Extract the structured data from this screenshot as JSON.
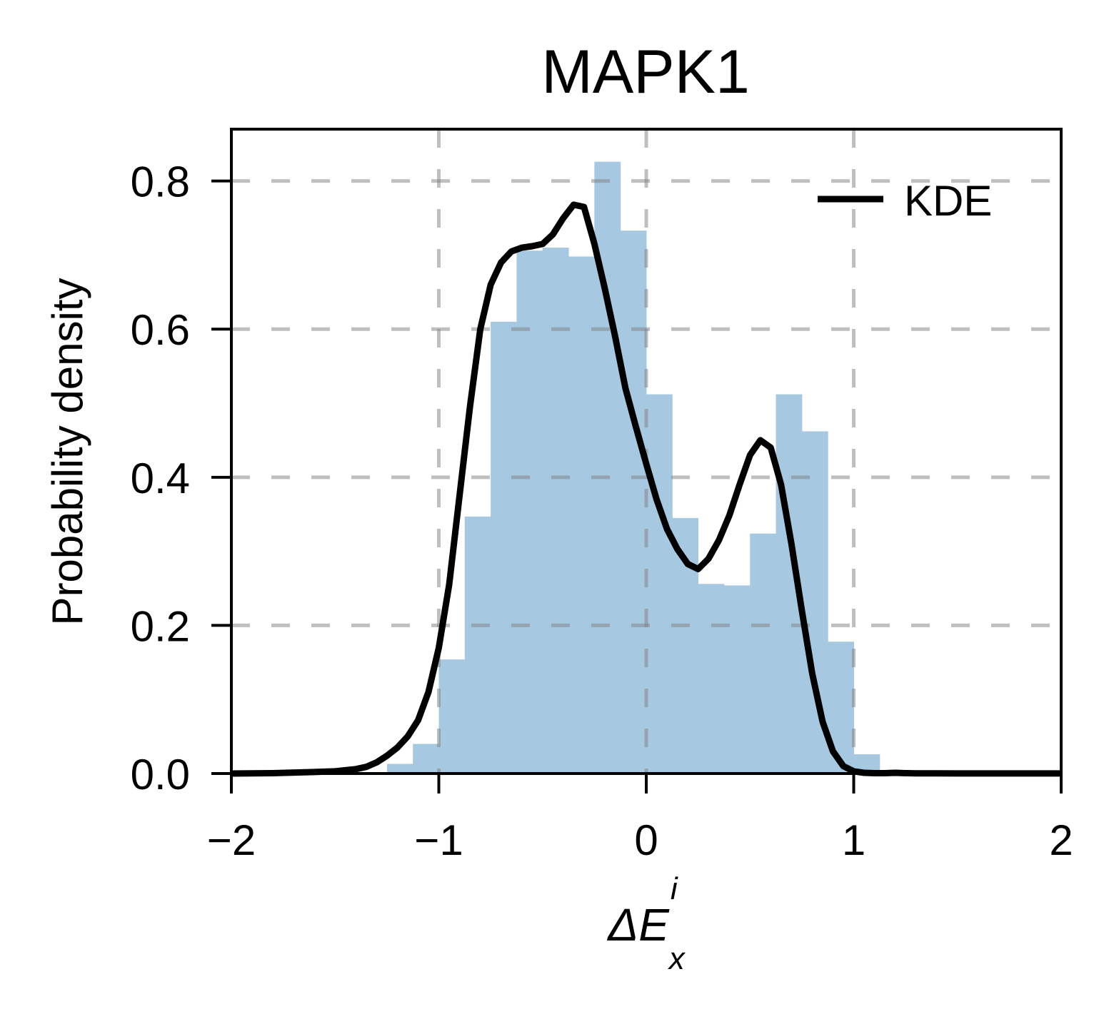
{
  "chart_data": {
    "type": "bar",
    "title": "MAPK1",
    "xlabel": {
      "base": "ΔE",
      "sup": "i",
      "sub": "x"
    },
    "ylabel": "Probability density",
    "xlim": [
      -2,
      2
    ],
    "ylim": [
      0,
      0.87
    ],
    "xticks": [
      -2,
      -1,
      0,
      1,
      2
    ],
    "xtick_labels": [
      "−2",
      "−1",
      "0",
      "1",
      "2"
    ],
    "yticks": [
      0.0,
      0.2,
      0.4,
      0.6,
      0.8
    ],
    "ytick_labels": [
      "0.0",
      "0.2",
      "0.4",
      "0.6",
      "0.8"
    ],
    "grid": true,
    "legend_position": "top-right",
    "histogram": {
      "color": "#a6c8e0",
      "bins": [
        {
          "x0": -1.25,
          "x1": -1.125,
          "value": 0.013
        },
        {
          "x0": -1.125,
          "x1": -1.0,
          "value": 0.04
        },
        {
          "x0": -1.0,
          "x1": -0.875,
          "value": 0.154
        },
        {
          "x0": -0.875,
          "x1": -0.75,
          "value": 0.347
        },
        {
          "x0": -0.75,
          "x1": -0.625,
          "value": 0.61
        },
        {
          "x0": -0.625,
          "x1": -0.5,
          "value": 0.706
        },
        {
          "x0": -0.5,
          "x1": -0.375,
          "value": 0.71
        },
        {
          "x0": -0.375,
          "x1": -0.25,
          "value": 0.698
        },
        {
          "x0": -0.25,
          "x1": -0.125,
          "value": 0.826
        },
        {
          "x0": -0.125,
          "x1": 0.0,
          "value": 0.733
        },
        {
          "x0": 0.0,
          "x1": 0.125,
          "value": 0.512
        },
        {
          "x0": 0.125,
          "x1": 0.25,
          "value": 0.345
        },
        {
          "x0": 0.25,
          "x1": 0.375,
          "value": 0.256
        },
        {
          "x0": 0.375,
          "x1": 0.5,
          "value": 0.254
        },
        {
          "x0": 0.5,
          "x1": 0.625,
          "value": 0.324
        },
        {
          "x0": 0.625,
          "x1": 0.75,
          "value": 0.512
        },
        {
          "x0": 0.75,
          "x1": 0.875,
          "value": 0.462
        },
        {
          "x0": 0.875,
          "x1": 1.0,
          "value": 0.178
        },
        {
          "x0": 1.0,
          "x1": 1.125,
          "value": 0.026
        },
        {
          "x0": 1.125,
          "x1": 1.25,
          "value": 0.003
        }
      ]
    },
    "series": [
      {
        "name": "KDE",
        "color": "#000000",
        "x": [
          -2.0,
          -1.8,
          -1.6,
          -1.5,
          -1.4,
          -1.35,
          -1.3,
          -1.25,
          -1.2,
          -1.15,
          -1.1,
          -1.05,
          -1.0,
          -0.95,
          -0.9,
          -0.85,
          -0.8,
          -0.75,
          -0.7,
          -0.65,
          -0.6,
          -0.55,
          -0.5,
          -0.45,
          -0.4,
          -0.35,
          -0.3,
          -0.25,
          -0.2,
          -0.15,
          -0.1,
          -0.05,
          0.0,
          0.05,
          0.1,
          0.15,
          0.2,
          0.25,
          0.3,
          0.35,
          0.4,
          0.45,
          0.5,
          0.55,
          0.6,
          0.65,
          0.7,
          0.75,
          0.8,
          0.85,
          0.9,
          0.95,
          1.0,
          1.05,
          1.1,
          1.15,
          1.2,
          1.25,
          1.3,
          1.4,
          1.5,
          1.6,
          1.8,
          2.0
        ],
        "y": [
          0.0,
          0.0005,
          0.002,
          0.003,
          0.006,
          0.009,
          0.015,
          0.024,
          0.035,
          0.05,
          0.072,
          0.11,
          0.17,
          0.255,
          0.375,
          0.495,
          0.6,
          0.66,
          0.69,
          0.705,
          0.71,
          0.712,
          0.715,
          0.728,
          0.75,
          0.768,
          0.765,
          0.715,
          0.655,
          0.59,
          0.52,
          0.468,
          0.418,
          0.37,
          0.33,
          0.303,
          0.283,
          0.276,
          0.29,
          0.315,
          0.348,
          0.39,
          0.43,
          0.45,
          0.44,
          0.39,
          0.31,
          0.22,
          0.135,
          0.07,
          0.03,
          0.01,
          0.003,
          0.001,
          0.0005,
          0.0005,
          0.001,
          0.0005,
          0.0003,
          0.0002,
          0.0001,
          0.0001,
          0.0001,
          0.0001
        ]
      }
    ]
  }
}
